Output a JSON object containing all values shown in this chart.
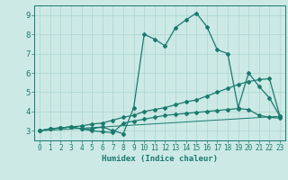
{
  "title": "",
  "xlabel": "Humidex (Indice chaleur)",
  "xlim": [
    -0.5,
    23.5
  ],
  "ylim": [
    2.5,
    9.5
  ],
  "xticks": [
    0,
    1,
    2,
    3,
    4,
    5,
    6,
    7,
    8,
    9,
    10,
    11,
    12,
    13,
    14,
    15,
    16,
    17,
    18,
    19,
    20,
    21,
    22,
    23
  ],
  "yticks": [
    3,
    4,
    5,
    6,
    7,
    8,
    9
  ],
  "bg_color": "#cce9e5",
  "line_color": "#1a7a6e",
  "grid_color": "#aad4cf",
  "lines": [
    {
      "x": [
        0,
        1,
        2,
        3,
        4,
        5,
        6,
        7,
        8,
        9,
        10,
        11,
        12,
        13,
        14,
        15,
        16,
        17,
        18,
        19,
        20,
        21,
        22,
        23
      ],
      "y": [
        3.0,
        3.1,
        3.15,
        3.2,
        3.1,
        3.1,
        3.2,
        3.0,
        2.85,
        4.2,
        8.0,
        7.75,
        7.4,
        8.35,
        8.75,
        9.1,
        8.4,
        7.2,
        7.0,
        4.2,
        6.0,
        5.3,
        4.7,
        3.75
      ]
    },
    {
      "x": [
        0,
        1,
        2,
        3,
        4,
        5,
        6,
        7,
        8,
        9,
        10,
        11,
        12,
        13,
        14,
        15,
        16,
        17,
        18,
        19,
        20,
        21,
        22,
        23
      ],
      "y": [
        3.0,
        3.1,
        3.15,
        3.2,
        3.25,
        3.35,
        3.4,
        3.55,
        3.7,
        3.8,
        4.0,
        4.1,
        4.2,
        4.35,
        4.5,
        4.6,
        4.8,
        5.0,
        5.2,
        5.4,
        5.55,
        5.65,
        5.7,
        3.75
      ]
    },
    {
      "x": [
        0,
        1,
        2,
        3,
        4,
        5,
        6,
        7,
        8,
        9,
        10,
        11,
        12,
        13,
        14,
        15,
        16,
        17,
        18,
        19,
        20,
        21,
        22,
        23
      ],
      "y": [
        3.0,
        3.1,
        3.15,
        3.2,
        3.1,
        3.0,
        2.95,
        2.9,
        3.4,
        3.5,
        3.6,
        3.7,
        3.8,
        3.85,
        3.9,
        3.95,
        4.0,
        4.05,
        4.1,
        4.15,
        4.1,
        3.8,
        3.7,
        3.65
      ]
    },
    {
      "x": [
        0,
        23
      ],
      "y": [
        3.0,
        3.75
      ]
    }
  ]
}
